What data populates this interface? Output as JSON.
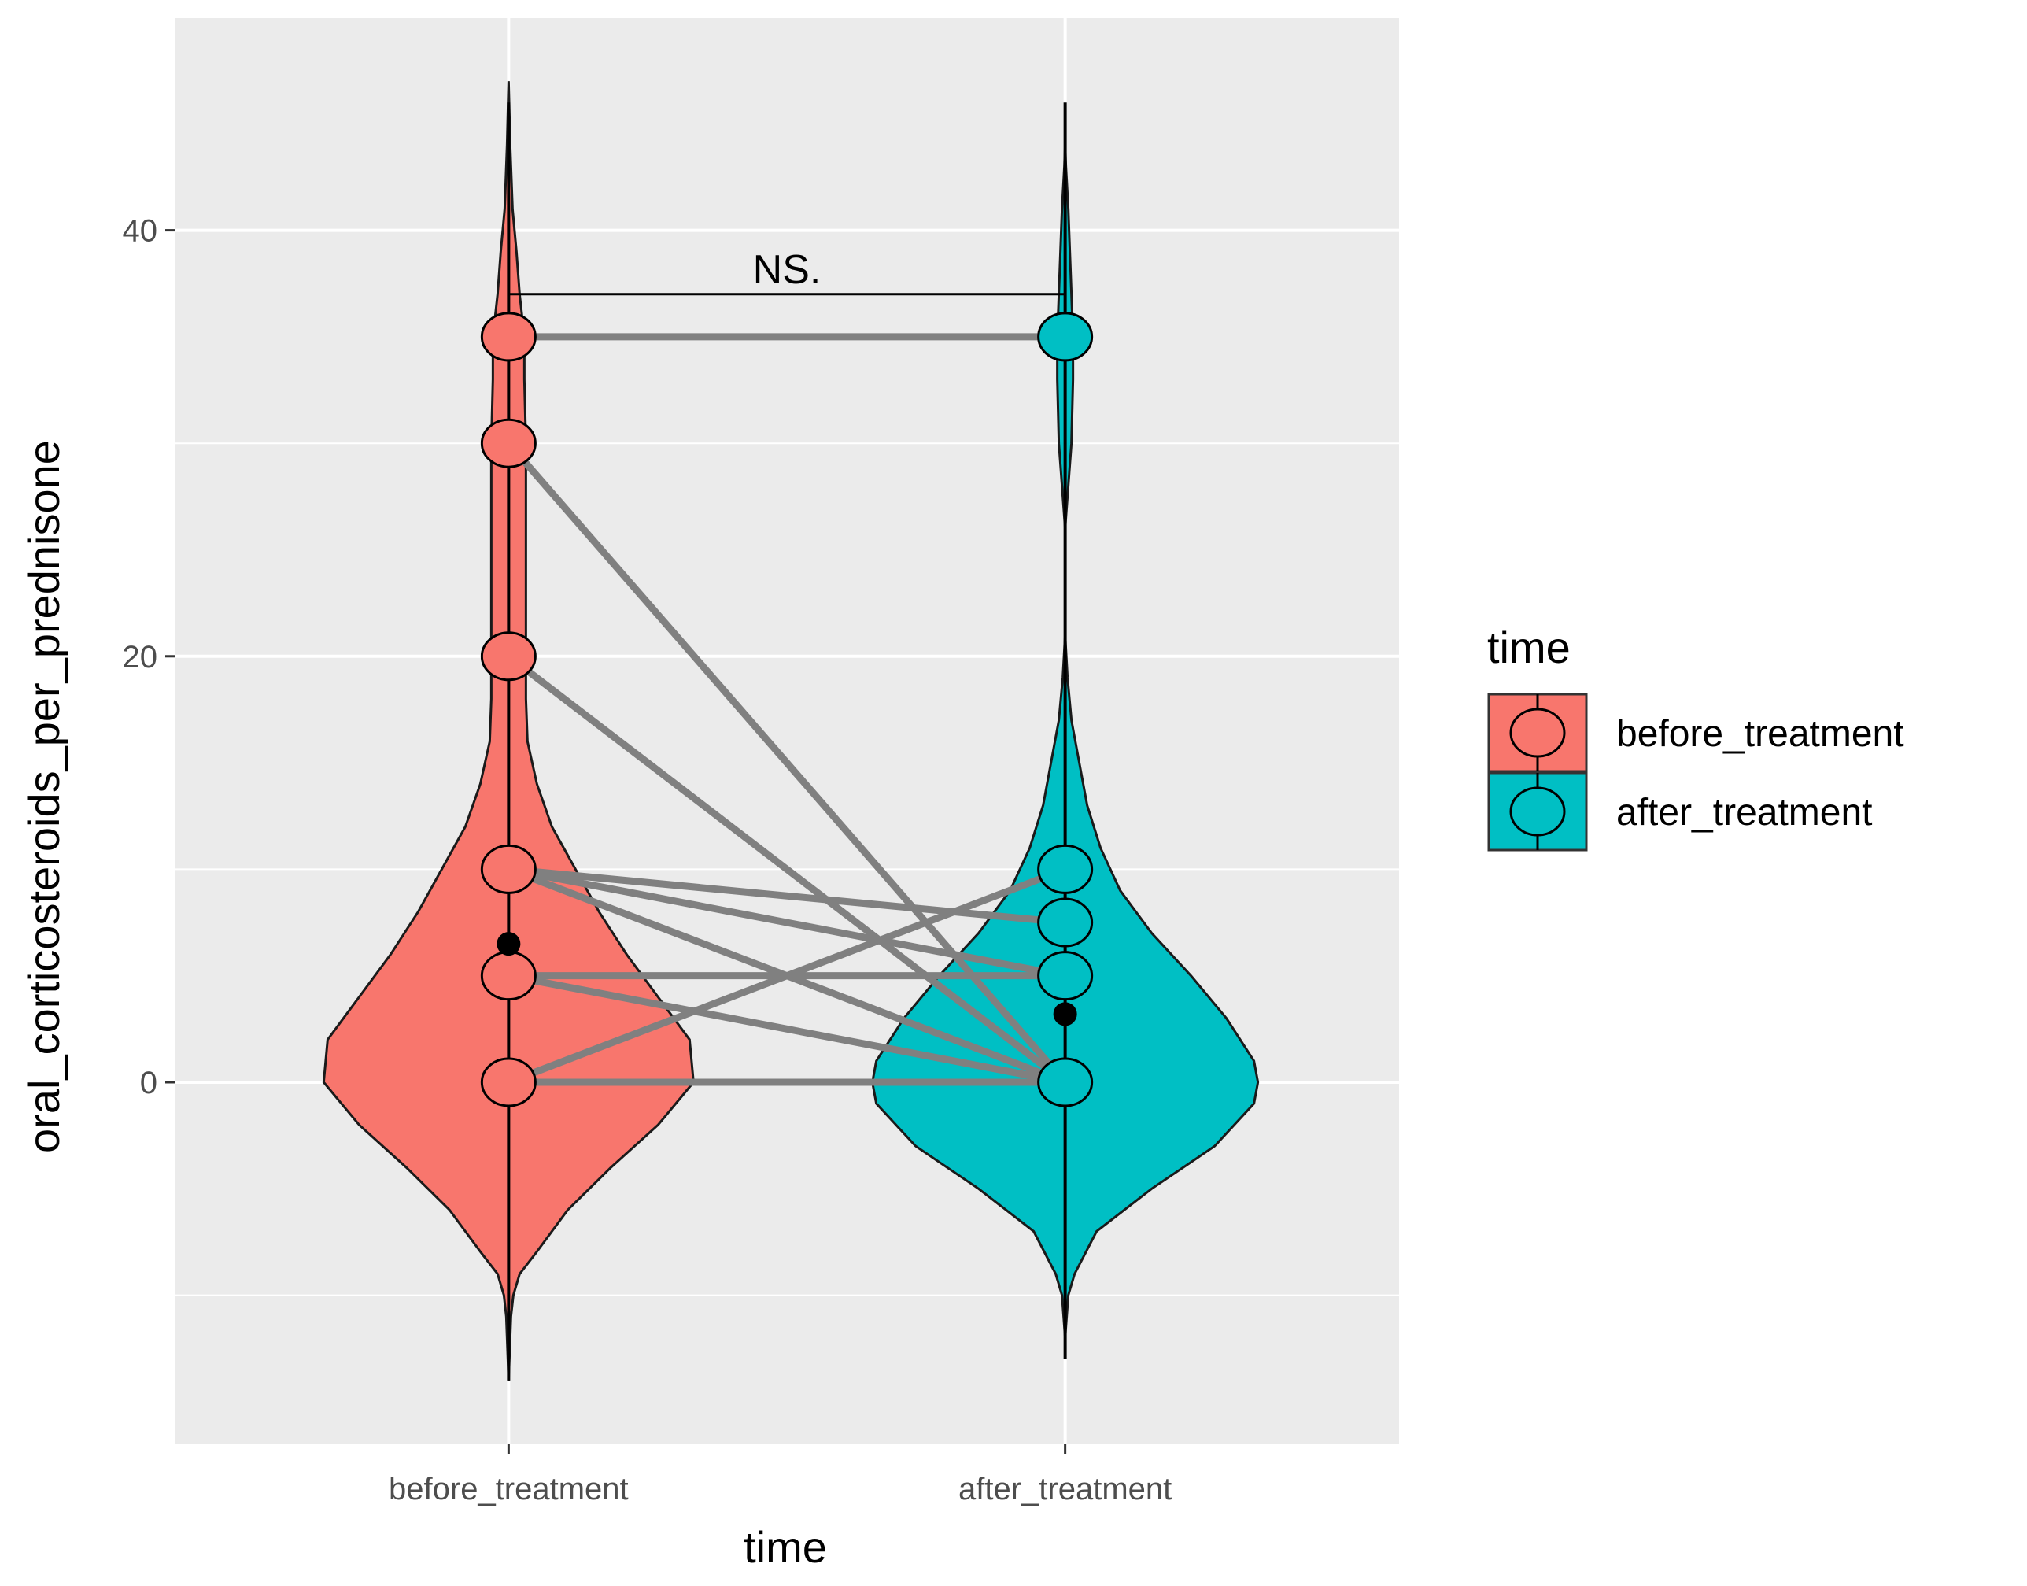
{
  "chart_data": {
    "type": "violin",
    "xlabel": "time",
    "ylabel": "oral_corticosteroids_per_prednisone",
    "categories": [
      "before_treatment",
      "after_treatment"
    ],
    "y_ticks": [
      0,
      20,
      40
    ],
    "ylim": [
      -17,
      50
    ],
    "grid": true,
    "legend": {
      "title": "time",
      "placement": "right",
      "entries": [
        "before_treatment",
        "after_treatment"
      ]
    },
    "colors": {
      "before_treatment": "#F8766D",
      "after_treatment": "#00BFC4",
      "panel": "#EBEBEB",
      "pair_line": "#808080"
    },
    "annotation": {
      "label": "NS.",
      "y": 37
    },
    "violins": [
      {
        "name": "before_treatment",
        "profile": [
          [
            -14,
            0
          ],
          [
            -11,
            3
          ],
          [
            -10,
            6
          ],
          [
            -9,
            14
          ],
          [
            -8,
            35
          ],
          [
            -6,
            75
          ],
          [
            -4,
            130
          ],
          [
            -2,
            190
          ],
          [
            0,
            235
          ],
          [
            2,
            230
          ],
          [
            4,
            190
          ],
          [
            6,
            150
          ],
          [
            8,
            115
          ],
          [
            10,
            85
          ],
          [
            12,
            55
          ],
          [
            14,
            36
          ],
          [
            16,
            24
          ],
          [
            18,
            22
          ],
          [
            20,
            22
          ],
          [
            22,
            22
          ],
          [
            26,
            22
          ],
          [
            30,
            22
          ],
          [
            33,
            20
          ],
          [
            35,
            20
          ],
          [
            37,
            14
          ],
          [
            39,
            10
          ],
          [
            41,
            5
          ],
          [
            44,
            2
          ],
          [
            47,
            0
          ]
        ],
        "mean": 6.5,
        "whisker": [
          -14,
          46
        ],
        "inner_whisker_top": 27
      },
      {
        "name": "after_treatment",
        "profile": [
          [
            -12,
            0
          ],
          [
            -10,
            4
          ],
          [
            -9,
            12
          ],
          [
            -7,
            40
          ],
          [
            -5,
            110
          ],
          [
            -3,
            190
          ],
          [
            -1,
            240
          ],
          [
            0,
            245
          ],
          [
            1,
            240
          ],
          [
            3,
            205
          ],
          [
            5,
            160
          ],
          [
            7,
            110
          ],
          [
            9,
            70
          ],
          [
            11,
            45
          ],
          [
            13,
            28
          ],
          [
            15,
            18
          ],
          [
            17,
            8
          ],
          [
            19,
            3
          ],
          [
            21,
            0
          ],
          [
            26,
            0
          ],
          [
            28,
            4
          ],
          [
            30,
            8
          ],
          [
            33,
            10
          ],
          [
            35,
            10
          ],
          [
            37,
            8
          ],
          [
            39,
            6
          ],
          [
            41,
            4
          ],
          [
            43,
            1
          ],
          [
            44,
            0
          ]
        ],
        "mean": 3.2,
        "whisker": [
          -13,
          46
        ],
        "inner_whisker_top": 18
      }
    ],
    "pairs": [
      {
        "before": 35,
        "after": 35
      },
      {
        "before": 30,
        "after": 0
      },
      {
        "before": 20,
        "after": 0
      },
      {
        "before": 10,
        "after": 7.5
      },
      {
        "before": 10,
        "after": 5
      },
      {
        "before": 10,
        "after": 0
      },
      {
        "before": 5,
        "after": 5
      },
      {
        "before": 5,
        "after": 0
      },
      {
        "before": 0,
        "after": 10
      },
      {
        "before": 0,
        "after": 0
      }
    ],
    "points": {
      "before_treatment": [
        35,
        30,
        20,
        10,
        5,
        0
      ],
      "after_treatment": [
        35,
        10,
        7.5,
        5,
        0
      ]
    }
  }
}
